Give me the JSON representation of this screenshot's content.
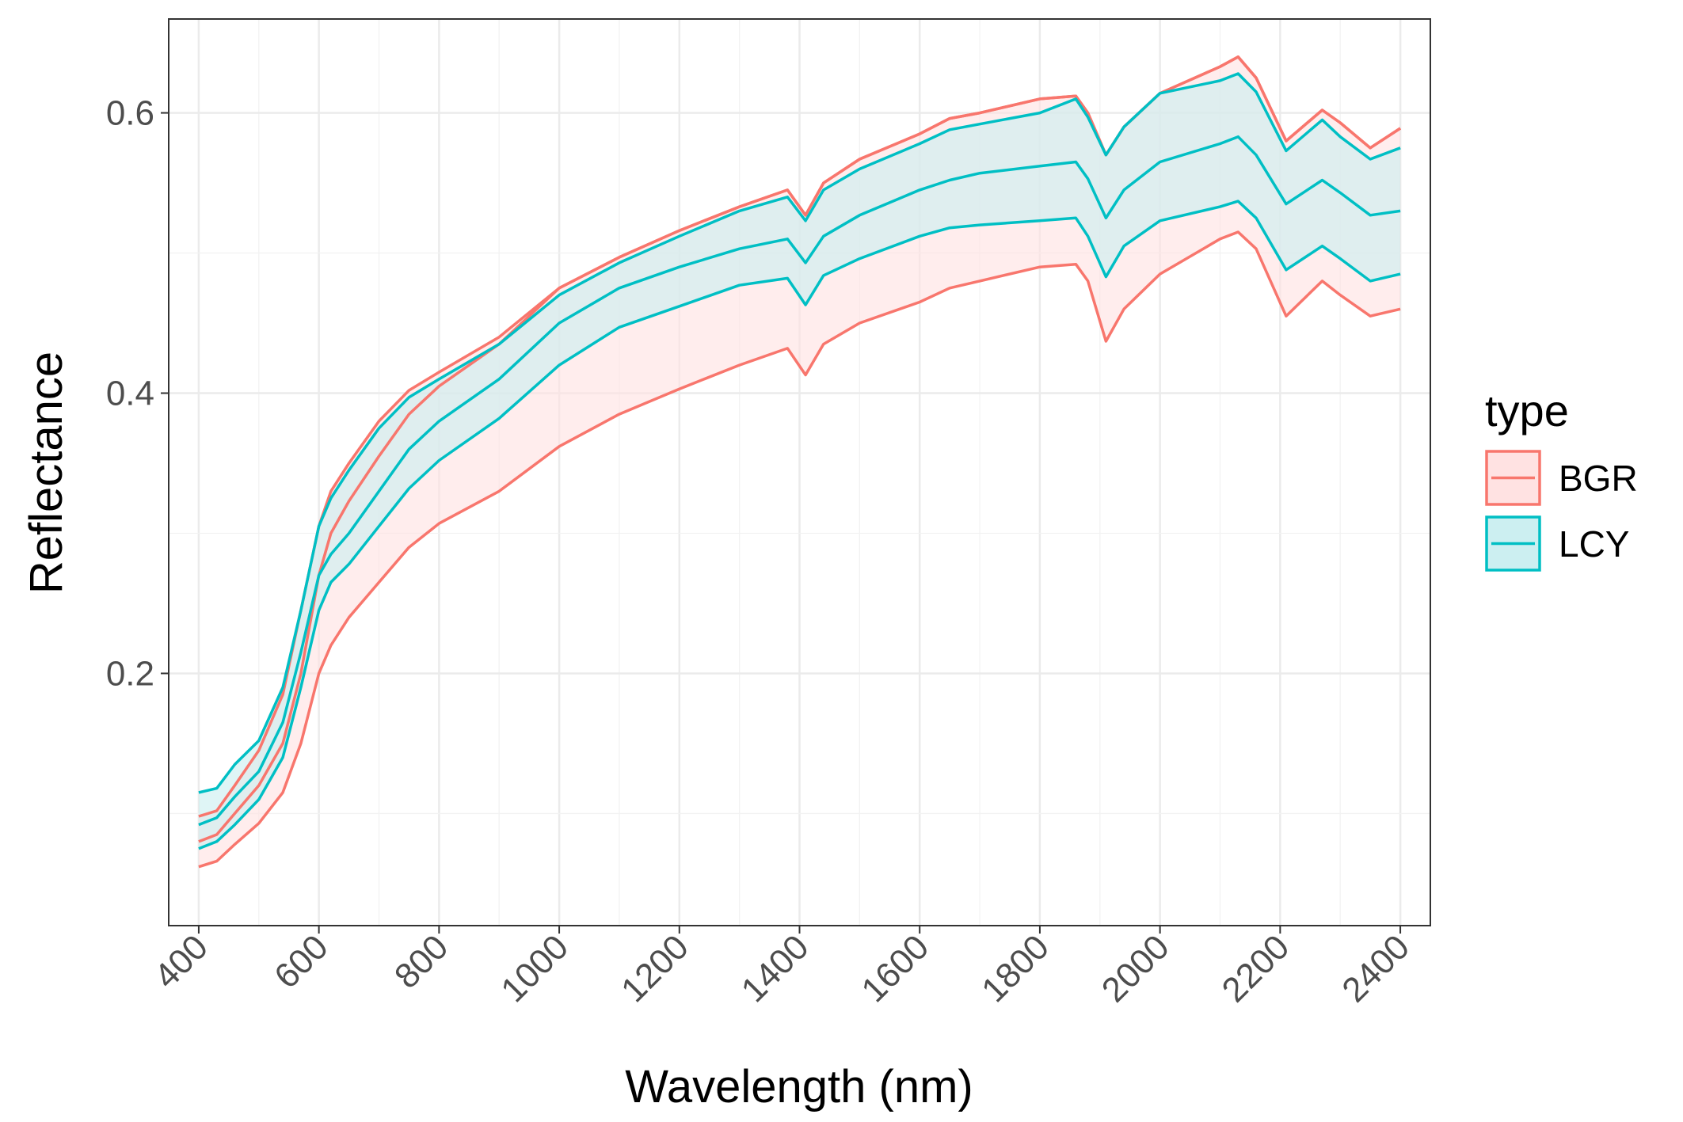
{
  "chart_data": {
    "type": "area",
    "title": "",
    "xlabel": "Wavelength (nm)",
    "ylabel": "Reflectance",
    "xlim": [
      350,
      2450
    ],
    "ylim": [
      0.02,
      0.667
    ],
    "x_ticks": [
      400,
      600,
      800,
      1000,
      1200,
      1400,
      1600,
      1800,
      2000,
      2200,
      2400
    ],
    "x_tick_labels": [
      "400",
      "600",
      "800",
      "1000",
      "1200",
      "1400",
      "1600",
      "1800",
      "2000",
      "2200",
      "2400"
    ],
    "y_ticks": [
      0.2,
      0.4,
      0.6
    ],
    "y_tick_labels": [
      "0.2",
      "0.4",
      "0.6"
    ],
    "y_minor_ticks": [
      0.1,
      0.3,
      0.5
    ],
    "grid": true,
    "legend": {
      "title": "type",
      "position": "right",
      "entries": [
        "BGR",
        "LCY"
      ]
    },
    "x": [
      400,
      430,
      460,
      500,
      540,
      570,
      600,
      620,
      650,
      700,
      750,
      800,
      900,
      1000,
      1100,
      1200,
      1300,
      1380,
      1410,
      1440,
      1500,
      1600,
      1650,
      1700,
      1800,
      1860,
      1880,
      1910,
      1940,
      2000,
      2100,
      2130,
      2160,
      2210,
      2270,
      2300,
      2350,
      2400
    ],
    "series": [
      {
        "name": "BGR",
        "color": "#F8766D",
        "fill": "#FFE2E2",
        "mean": [
          0.08,
          0.085,
          0.1,
          0.12,
          0.15,
          0.2,
          0.27,
          0.3,
          0.323,
          0.355,
          0.385,
          0.405,
          0.435,
          0.475,
          0.497,
          0.516,
          0.533,
          0.545,
          0.527,
          0.55,
          0.567,
          0.585,
          0.596,
          0.6,
          0.61,
          0.612,
          0.6,
          0.57,
          0.59,
          0.614,
          0.633,
          0.64,
          0.625,
          0.58,
          0.602,
          0.593,
          0.575,
          0.589
        ],
        "lower": [
          0.062,
          0.066,
          0.078,
          0.093,
          0.115,
          0.15,
          0.2,
          0.22,
          0.24,
          0.265,
          0.29,
          0.307,
          0.33,
          0.362,
          0.385,
          0.403,
          0.42,
          0.432,
          0.413,
          0.435,
          0.45,
          0.465,
          0.475,
          0.48,
          0.49,
          0.492,
          0.48,
          0.437,
          0.46,
          0.485,
          0.51,
          0.515,
          0.503,
          0.455,
          0.48,
          0.47,
          0.455,
          0.46
        ],
        "upper": [
          0.098,
          0.102,
          0.12,
          0.145,
          0.185,
          0.245,
          0.305,
          0.33,
          0.35,
          0.38,
          0.402,
          0.415,
          0.44,
          0.475,
          0.497,
          0.516,
          0.533,
          0.545,
          0.527,
          0.55,
          0.567,
          0.585,
          0.596,
          0.6,
          0.61,
          0.612,
          0.6,
          0.57,
          0.59,
          0.614,
          0.633,
          0.64,
          0.625,
          0.58,
          0.602,
          0.593,
          0.575,
          0.589
        ]
      },
      {
        "name": "LCY",
        "color": "#00BFC4",
        "fill": "#CCEFF1",
        "mean": [
          0.092,
          0.097,
          0.112,
          0.13,
          0.165,
          0.215,
          0.27,
          0.285,
          0.3,
          0.33,
          0.36,
          0.38,
          0.41,
          0.45,
          0.475,
          0.49,
          0.503,
          0.51,
          0.493,
          0.512,
          0.527,
          0.545,
          0.552,
          0.557,
          0.562,
          0.565,
          0.553,
          0.525,
          0.545,
          0.565,
          0.578,
          0.583,
          0.57,
          0.535,
          0.552,
          0.543,
          0.527,
          0.53
        ],
        "lower": [
          0.075,
          0.08,
          0.092,
          0.11,
          0.14,
          0.19,
          0.245,
          0.265,
          0.278,
          0.305,
          0.332,
          0.352,
          0.382,
          0.42,
          0.447,
          0.462,
          0.477,
          0.482,
          0.463,
          0.484,
          0.496,
          0.512,
          0.518,
          0.52,
          0.523,
          0.525,
          0.512,
          0.483,
          0.505,
          0.523,
          0.533,
          0.537,
          0.525,
          0.488,
          0.505,
          0.496,
          0.48,
          0.485
        ],
        "upper": [
          0.115,
          0.118,
          0.135,
          0.152,
          0.19,
          0.245,
          0.305,
          0.325,
          0.345,
          0.375,
          0.397,
          0.41,
          0.435,
          0.47,
          0.493,
          0.512,
          0.53,
          0.54,
          0.523,
          0.545,
          0.56,
          0.578,
          0.588,
          0.592,
          0.6,
          0.61,
          0.597,
          0.57,
          0.59,
          0.614,
          0.623,
          0.628,
          0.615,
          0.573,
          0.595,
          0.583,
          0.567,
          0.575
        ]
      }
    ]
  }
}
